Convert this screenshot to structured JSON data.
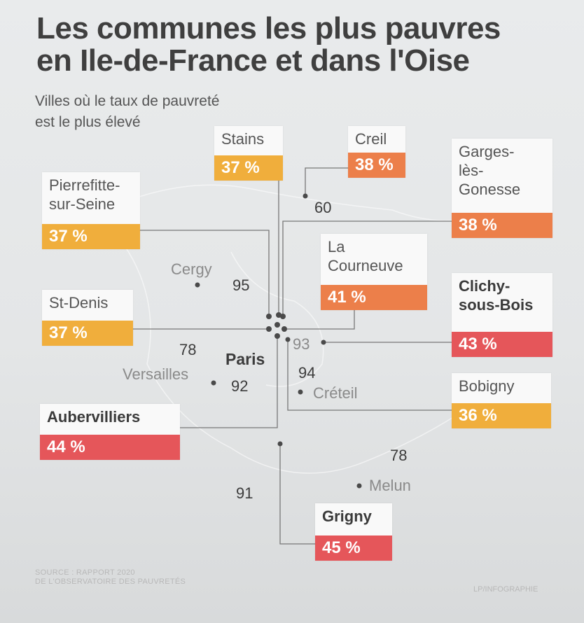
{
  "title": [
    "Les communes les plus pauvres",
    "en Ile-de-France et dans l'Oise"
  ],
  "subtitle": [
    "Villes où le taux de pauvreté",
    "est le plus élevé"
  ],
  "map_labels": {
    "dept_60": "60",
    "dept_95": "95",
    "dept_78_west": "78",
    "dept_92": "92",
    "dept_93": "93",
    "dept_94": "94",
    "dept_78_south": "78",
    "dept_91": "91",
    "paris": "Paris",
    "cergy": "Cergy",
    "versailles": "Versailles",
    "creteil": "Créteil",
    "melun": "Melun"
  },
  "communes": [
    {
      "key": "stains",
      "name": [
        "Stains"
      ],
      "rate": "37 %",
      "color": "#f0ae3c"
    },
    {
      "key": "creil",
      "name": [
        "Creil"
      ],
      "rate": "38 %",
      "color": "#ec7f4a"
    },
    {
      "key": "garges",
      "name": [
        "Garges-",
        "lès-",
        "Gonesse"
      ],
      "rate": "38 %",
      "color": "#ec7f4a"
    },
    {
      "key": "pierrefitte",
      "name": [
        "Pierrefitte-",
        "sur-Seine"
      ],
      "rate": "37 %",
      "color": "#f0ae3c"
    },
    {
      "key": "courneuve",
      "name": [
        "La",
        "Courneuve"
      ],
      "rate": "41 %",
      "color": "#ec7f4a"
    },
    {
      "key": "clichy",
      "name": [
        "Clichy-",
        "sous-Bois"
      ],
      "rate": "43 %",
      "color": "#e5565a"
    },
    {
      "key": "stdenis",
      "name": [
        "St-Denis"
      ],
      "rate": "37 %",
      "color": "#f0ae3c"
    },
    {
      "key": "bobigny",
      "name": [
        "Bobigny"
      ],
      "rate": "36 %",
      "color": "#f0ae3c"
    },
    {
      "key": "aubervilliers",
      "name": [
        "Aubervilliers"
      ],
      "rate": "44 %",
      "color": "#e5565a"
    },
    {
      "key": "grigny",
      "name": [
        "Grigny"
      ],
      "rate": "45 %",
      "color": "#e5565a"
    }
  ],
  "source": [
    "SOURCE : RAPPORT 2020",
    "DE L'OBSERVATOIRE DES PAUVRETÉS"
  ],
  "credit": "LP/INFOGRAPHIE"
}
